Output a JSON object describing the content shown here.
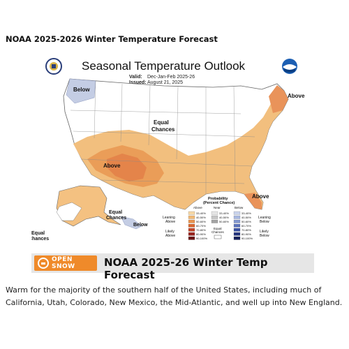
{
  "page": {
    "title": "NOAA 2025-2026 Winter Temperature Forecast",
    "caption": "Warm for the majority of the southern half of the United States, including much of California, Utah, Colorado, New Mexico, the Mid-Atlantic, and well up into New England."
  },
  "map": {
    "title": "Seasonal Temperature Outlook",
    "valid_label": "Valid:",
    "valid_value": "Dec-Jan-Feb 2025-26",
    "issued_label": "Issued:",
    "issued_value": "August 21, 2025",
    "regions": {
      "above_northeast": "Above",
      "below_northwest": "Below",
      "equal_chances_center": "Equal\nChances",
      "above_southwest": "Above",
      "above_florida": "Above",
      "equal_chances_alaska": "Equal\nChances",
      "below_alaska": "Below",
      "equal_chances_hawaii": "Equal\nChances"
    },
    "colors": {
      "above_light": "#f4c181",
      "above_medium": "#e9a35d",
      "above_dark": "#e4844a",
      "below_light": "#c4cde4",
      "land": "#ffffff",
      "border": "#666666"
    }
  },
  "legend": {
    "title": "Probability\n(Percent Chance)",
    "headers": {
      "above": "Above\nNormal",
      "near": "Near\nNormal",
      "below": "Below\nNormal"
    },
    "above_ranges": [
      "33-40%",
      "40-50%",
      "50-60%",
      "60-70%",
      "70-80%",
      "80-90%",
      "90-100%"
    ],
    "above_colors": [
      "#f6d8a6",
      "#f1b873",
      "#e8934e",
      "#d9672f",
      "#c0452a",
      "#9a2620",
      "#6b1313"
    ],
    "near_ranges": [
      "33-40%",
      "40-50%",
      "50-60%"
    ],
    "near_colors": [
      "#e6e6e6",
      "#c5c5c5",
      "#a3a3a3"
    ],
    "below_ranges": [
      "33-40%",
      "40-50%",
      "50-60%",
      "60-70%",
      "70-80%",
      "80-90%",
      "90-100%"
    ],
    "below_colors": [
      "#c9d3ec",
      "#a7b7e0",
      "#8297cf",
      "#5c73bc",
      "#3b52a4",
      "#25357f",
      "#141f5a"
    ],
    "leaning_above": "Leaning\nAbove",
    "likely_above": "Likely\nAbove",
    "leaning_below": "Leaning\nBelow",
    "likely_below": "Likely\nBelow",
    "equal_chances": "Equal\nChances"
  },
  "banner": {
    "logo_text": "OPEN\nSNOW",
    "text": "NOAA 2025-26 Winter Temp Forecast"
  }
}
